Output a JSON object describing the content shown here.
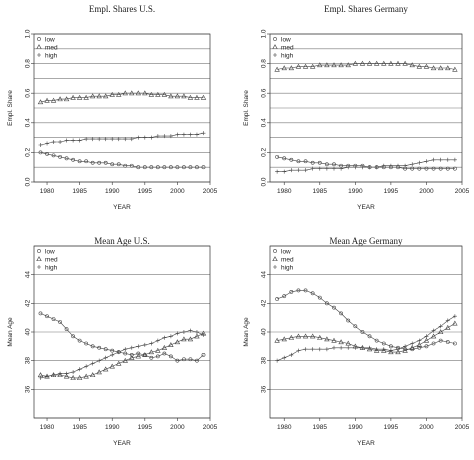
{
  "chart_data": [
    {
      "type": "line",
      "title": "Empl. Shares U.S.",
      "xlabel": "YEAR",
      "ylabel": "Empl. Share",
      "xlim": [
        1978,
        2005
      ],
      "ylim": [
        0,
        1
      ],
      "x_ticks": [
        1980,
        1985,
        1990,
        1995,
        2000,
        2005
      ],
      "y_ticks": [
        "0.0",
        "0.2",
        "0.4",
        "0.6",
        "0.8",
        "1.0"
      ],
      "y_tick_values": [
        0,
        0.2,
        0.4,
        0.6,
        0.8,
        1.0
      ],
      "hgrid": [
        0,
        0.1,
        0.2,
        0.3,
        0.4,
        0.5,
        0.6,
        0.7,
        0.8,
        0.9,
        1.0
      ],
      "legend": "top-left",
      "series": [
        {
          "name": "low",
          "marker": "circle",
          "x": [
            1979,
            1980,
            1981,
            1982,
            1983,
            1984,
            1985,
            1986,
            1987,
            1988,
            1989,
            1990,
            1991,
            1992,
            1993,
            1994,
            1995,
            1996,
            1997,
            1998,
            1999,
            2000,
            2001,
            2002,
            2003,
            2004
          ],
          "values": [
            0.2,
            0.19,
            0.18,
            0.17,
            0.16,
            0.15,
            0.14,
            0.14,
            0.13,
            0.13,
            0.13,
            0.12,
            0.12,
            0.11,
            0.11,
            0.1,
            0.1,
            0.1,
            0.1,
            0.1,
            0.1,
            0.1,
            0.1,
            0.1,
            0.1,
            0.1
          ]
        },
        {
          "name": "med",
          "marker": "triangle",
          "x": [
            1979,
            1980,
            1981,
            1982,
            1983,
            1984,
            1985,
            1986,
            1987,
            1988,
            1989,
            1990,
            1991,
            1992,
            1993,
            1994,
            1995,
            1996,
            1997,
            1998,
            1999,
            2000,
            2001,
            2002,
            2003,
            2004
          ],
          "values": [
            0.54,
            0.55,
            0.55,
            0.56,
            0.56,
            0.57,
            0.57,
            0.57,
            0.58,
            0.58,
            0.58,
            0.59,
            0.59,
            0.6,
            0.6,
            0.6,
            0.6,
            0.59,
            0.59,
            0.59,
            0.58,
            0.58,
            0.58,
            0.57,
            0.57,
            0.57
          ]
        },
        {
          "name": "high",
          "marker": "plus",
          "x": [
            1979,
            1980,
            1981,
            1982,
            1983,
            1984,
            1985,
            1986,
            1987,
            1988,
            1989,
            1990,
            1991,
            1992,
            1993,
            1994,
            1995,
            1996,
            1997,
            1998,
            1999,
            2000,
            2001,
            2002,
            2003,
            2004
          ],
          "values": [
            0.25,
            0.26,
            0.27,
            0.27,
            0.28,
            0.28,
            0.28,
            0.29,
            0.29,
            0.29,
            0.29,
            0.29,
            0.29,
            0.29,
            0.29,
            0.3,
            0.3,
            0.3,
            0.31,
            0.31,
            0.31,
            0.32,
            0.32,
            0.32,
            0.32,
            0.33
          ]
        }
      ]
    },
    {
      "type": "line",
      "title": "Empl. Shares Germany",
      "xlabel": "YEAR",
      "ylabel": "Empl. Share",
      "xlim": [
        1978,
        2005
      ],
      "ylim": [
        0,
        1
      ],
      "x_ticks": [
        1980,
        1985,
        1990,
        1995,
        2000,
        2005
      ],
      "y_ticks": [
        "0.0",
        "0.2",
        "0.4",
        "0.6",
        "0.8",
        "1.0"
      ],
      "y_tick_values": [
        0,
        0.2,
        0.4,
        0.6,
        0.8,
        1.0
      ],
      "hgrid": [
        0,
        0.1,
        0.2,
        0.3,
        0.4,
        0.5,
        0.6,
        0.7,
        0.8,
        0.9,
        1.0
      ],
      "legend": "top-left",
      "series": [
        {
          "name": "low",
          "marker": "circle",
          "x": [
            1979,
            1980,
            1981,
            1982,
            1983,
            1984,
            1985,
            1986,
            1987,
            1988,
            1989,
            1990,
            1991,
            1992,
            1993,
            1994,
            1995,
            1996,
            1997,
            1998,
            1999,
            2000,
            2001,
            2002,
            2003,
            2004
          ],
          "values": [
            0.17,
            0.16,
            0.15,
            0.14,
            0.14,
            0.13,
            0.13,
            0.12,
            0.12,
            0.11,
            0.11,
            0.11,
            0.11,
            0.1,
            0.1,
            0.1,
            0.1,
            0.1,
            0.09,
            0.09,
            0.09,
            0.09,
            0.09,
            0.09,
            0.09,
            0.09
          ]
        },
        {
          "name": "med",
          "marker": "triangle",
          "x": [
            1979,
            1980,
            1981,
            1982,
            1983,
            1984,
            1985,
            1986,
            1987,
            1988,
            1989,
            1990,
            1991,
            1992,
            1993,
            1994,
            1995,
            1996,
            1997,
            1998,
            1999,
            2000,
            2001,
            2002,
            2003,
            2004
          ],
          "values": [
            0.76,
            0.77,
            0.77,
            0.78,
            0.78,
            0.78,
            0.79,
            0.79,
            0.79,
            0.79,
            0.79,
            0.8,
            0.8,
            0.8,
            0.8,
            0.8,
            0.8,
            0.8,
            0.8,
            0.79,
            0.78,
            0.78,
            0.77,
            0.77,
            0.77,
            0.76
          ]
        },
        {
          "name": "high",
          "marker": "plus",
          "x": [
            1979,
            1980,
            1981,
            1982,
            1983,
            1984,
            1985,
            1986,
            1987,
            1988,
            1989,
            1990,
            1991,
            1992,
            1993,
            1994,
            1995,
            1996,
            1997,
            1998,
            1999,
            2000,
            2001,
            2002,
            2003,
            2004
          ],
          "values": [
            0.07,
            0.07,
            0.08,
            0.08,
            0.08,
            0.09,
            0.09,
            0.09,
            0.09,
            0.09,
            0.1,
            0.1,
            0.1,
            0.1,
            0.1,
            0.11,
            0.11,
            0.11,
            0.11,
            0.12,
            0.13,
            0.14,
            0.15,
            0.15,
            0.15,
            0.15
          ]
        }
      ]
    },
    {
      "type": "line",
      "title": "Mean Age U.S.",
      "xlabel": "YEAR",
      "ylabel": "Mean Age",
      "xlim": [
        1978,
        2005
      ],
      "ylim": [
        34,
        46
      ],
      "x_ticks": [
        1980,
        1985,
        1990,
        1995,
        2000,
        2005
      ],
      "y_ticks": [
        "36",
        "38",
        "40",
        "42",
        "44"
      ],
      "y_tick_values": [
        36,
        38,
        40,
        42,
        44
      ],
      "hgrid": [
        34,
        36,
        38,
        40,
        42,
        44,
        46
      ],
      "legend": "top-left",
      "series": [
        {
          "name": "low",
          "marker": "circle",
          "x": [
            1979,
            1980,
            1981,
            1982,
            1983,
            1984,
            1985,
            1986,
            1987,
            1988,
            1989,
            1990,
            1991,
            1992,
            1993,
            1994,
            1995,
            1996,
            1997,
            1998,
            1999,
            2000,
            2001,
            2002,
            2003,
            2004
          ],
          "values": [
            41.3,
            41.1,
            40.9,
            40.7,
            40.2,
            39.7,
            39.4,
            39.2,
            39.0,
            38.9,
            38.8,
            38.7,
            38.6,
            38.5,
            38.4,
            38.5,
            38.4,
            38.2,
            38.3,
            38.5,
            38.3,
            38.0,
            38.1,
            38.1,
            38.0,
            38.4
          ]
        },
        {
          "name": "med",
          "marker": "triangle",
          "x": [
            1979,
            1980,
            1981,
            1982,
            1983,
            1984,
            1985,
            1986,
            1987,
            1988,
            1989,
            1990,
            1991,
            1992,
            1993,
            1994,
            1995,
            1996,
            1997,
            1998,
            1999,
            2000,
            2001,
            2002,
            2003,
            2004
          ],
          "values": [
            37.0,
            36.9,
            37.0,
            37.0,
            36.9,
            36.8,
            36.8,
            36.9,
            37.0,
            37.2,
            37.4,
            37.6,
            37.8,
            38.0,
            38.2,
            38.3,
            38.4,
            38.6,
            38.7,
            38.9,
            39.1,
            39.3,
            39.5,
            39.5,
            39.7,
            39.9
          ]
        },
        {
          "name": "high",
          "marker": "plus",
          "x": [
            1979,
            1980,
            1981,
            1982,
            1983,
            1984,
            1985,
            1986,
            1987,
            1988,
            1989,
            1990,
            1991,
            1992,
            1993,
            1994,
            1995,
            1996,
            1997,
            1998,
            1999,
            2000,
            2001,
            2002,
            2003,
            2004
          ],
          "values": [
            36.8,
            36.9,
            37.0,
            37.1,
            37.1,
            37.2,
            37.4,
            37.6,
            37.8,
            38.0,
            38.2,
            38.4,
            38.6,
            38.8,
            38.9,
            39.0,
            39.1,
            39.2,
            39.4,
            39.6,
            39.7,
            39.9,
            40.0,
            40.1,
            40.0,
            39.8
          ]
        }
      ]
    },
    {
      "type": "line",
      "title": "Mean Age Germany",
      "xlabel": "YEAR",
      "ylabel": "Mean Age",
      "xlim": [
        1978,
        2005
      ],
      "ylim": [
        34,
        46
      ],
      "x_ticks": [
        1980,
        1985,
        1990,
        1995,
        2000,
        2005
      ],
      "y_ticks": [
        "36",
        "38",
        "40",
        "42",
        "44"
      ],
      "y_tick_values": [
        36,
        38,
        40,
        42,
        44
      ],
      "hgrid": [
        34,
        36,
        38,
        40,
        42,
        44,
        46
      ],
      "legend": "top-left",
      "series": [
        {
          "name": "low",
          "marker": "circle",
          "x": [
            1979,
            1980,
            1981,
            1982,
            1983,
            1984,
            1985,
            1986,
            1987,
            1988,
            1989,
            1990,
            1991,
            1992,
            1993,
            1994,
            1995,
            1996,
            1997,
            1998,
            1999,
            2000,
            2001,
            2002,
            2003,
            2004
          ],
          "values": [
            42.3,
            42.5,
            42.8,
            42.9,
            42.9,
            42.7,
            42.4,
            42.0,
            41.7,
            41.3,
            40.8,
            40.4,
            40.0,
            39.7,
            39.4,
            39.2,
            39.0,
            38.9,
            38.8,
            38.8,
            38.9,
            39.0,
            39.2,
            39.4,
            39.3,
            39.2
          ]
        },
        {
          "name": "med",
          "marker": "triangle",
          "x": [
            1979,
            1980,
            1981,
            1982,
            1983,
            1984,
            1985,
            1986,
            1987,
            1988,
            1989,
            1990,
            1991,
            1992,
            1993,
            1994,
            1995,
            1996,
            1997,
            1998,
            1999,
            2000,
            2001,
            2002,
            2003,
            2004
          ],
          "values": [
            39.4,
            39.5,
            39.6,
            39.7,
            39.7,
            39.7,
            39.6,
            39.5,
            39.4,
            39.3,
            39.2,
            39.0,
            38.9,
            38.8,
            38.7,
            38.7,
            38.6,
            38.6,
            38.7,
            38.9,
            39.1,
            39.4,
            39.7,
            40.0,
            40.3,
            40.6
          ]
        },
        {
          "name": "high",
          "marker": "plus",
          "x": [
            1979,
            1980,
            1981,
            1982,
            1983,
            1984,
            1985,
            1986,
            1987,
            1988,
            1989,
            1990,
            1991,
            1992,
            1993,
            1994,
            1995,
            1996,
            1997,
            1998,
            1999,
            2000,
            2001,
            2002,
            2003,
            2004
          ],
          "values": [
            38.0,
            38.2,
            38.4,
            38.7,
            38.8,
            38.8,
            38.8,
            38.8,
            38.9,
            38.9,
            38.9,
            38.9,
            38.9,
            38.9,
            38.8,
            38.8,
            38.7,
            38.8,
            39.0,
            39.2,
            39.4,
            39.7,
            40.1,
            40.4,
            40.8,
            41.1
          ]
        }
      ]
    }
  ]
}
